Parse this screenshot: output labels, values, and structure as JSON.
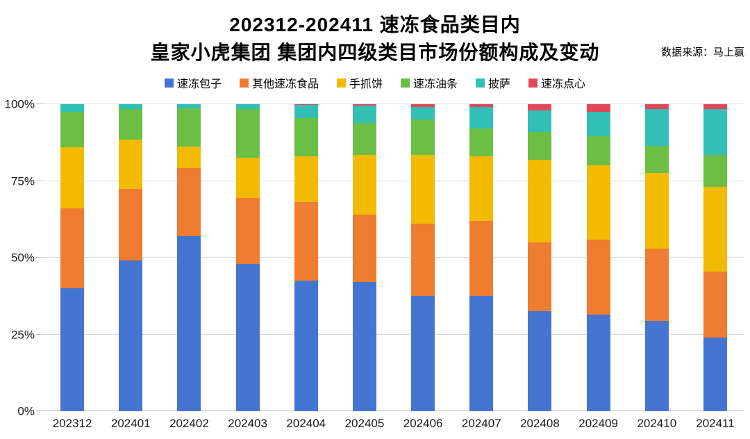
{
  "header": {
    "title_line1": "202312-202411 速冻食品类目内",
    "title_line2": "皇家小虎集团 集团内四级类目市场份额构成及变动",
    "source": "数据来源：马上赢"
  },
  "chart_data": {
    "type": "bar",
    "stacked": true,
    "unit": "percent",
    "title": "202312-202411 速冻食品类目内 皇家小虎集团 集团内四级类目市场份额构成及变动",
    "xlabel": "",
    "ylabel": "",
    "ylim": [
      0,
      100
    ],
    "grid": true,
    "legend_position": "top",
    "yticks": [
      "0%",
      "25%",
      "50%",
      "75%",
      "100%"
    ],
    "categories": [
      "202312",
      "202401",
      "202402",
      "202403",
      "202404",
      "202405",
      "202406",
      "202407",
      "202408",
      "202409",
      "202410",
      "202411"
    ],
    "series": [
      {
        "name": "速冻包子",
        "color": "#4575D0",
        "values": [
          40,
          49,
          57,
          48,
          42.5,
          42,
          37.5,
          37.5,
          32.5,
          31.5,
          29.5,
          24
        ]
      },
      {
        "name": "其他速冻食品",
        "color": "#EE7D31",
        "values": [
          26,
          23.5,
          22.2,
          21.5,
          25.5,
          22,
          23.5,
          24.5,
          22.5,
          24.5,
          23.5,
          21.5
        ]
      },
      {
        "name": "手抓饼",
        "color": "#F2BB02",
        "values": [
          20,
          16,
          7,
          13,
          15,
          19.5,
          22.5,
          21,
          27,
          24,
          24.5,
          27.5
        ]
      },
      {
        "name": "速冻油条",
        "color": "#6CBE45",
        "values": [
          11.5,
          10,
          12.5,
          16,
          12.5,
          10.5,
          11.5,
          9,
          9,
          9.5,
          9,
          10.5
        ]
      },
      {
        "name": "披萨",
        "color": "#32BFB6",
        "values": [
          2.5,
          1.5,
          1.3,
          1.5,
          4.2,
          5.5,
          4,
          7,
          7,
          8,
          12,
          15
        ]
      },
      {
        "name": "速冻点心",
        "color": "#E3485A",
        "values": [
          0,
          0,
          0,
          0,
          0.3,
          0.5,
          1,
          1,
          2,
          2.5,
          1.5,
          1.5
        ]
      }
    ],
    "colors": {
      "gridline": "#d9d9d9",
      "baseline": "#c3c3c3",
      "axis_text": "#1a1a1a"
    }
  }
}
